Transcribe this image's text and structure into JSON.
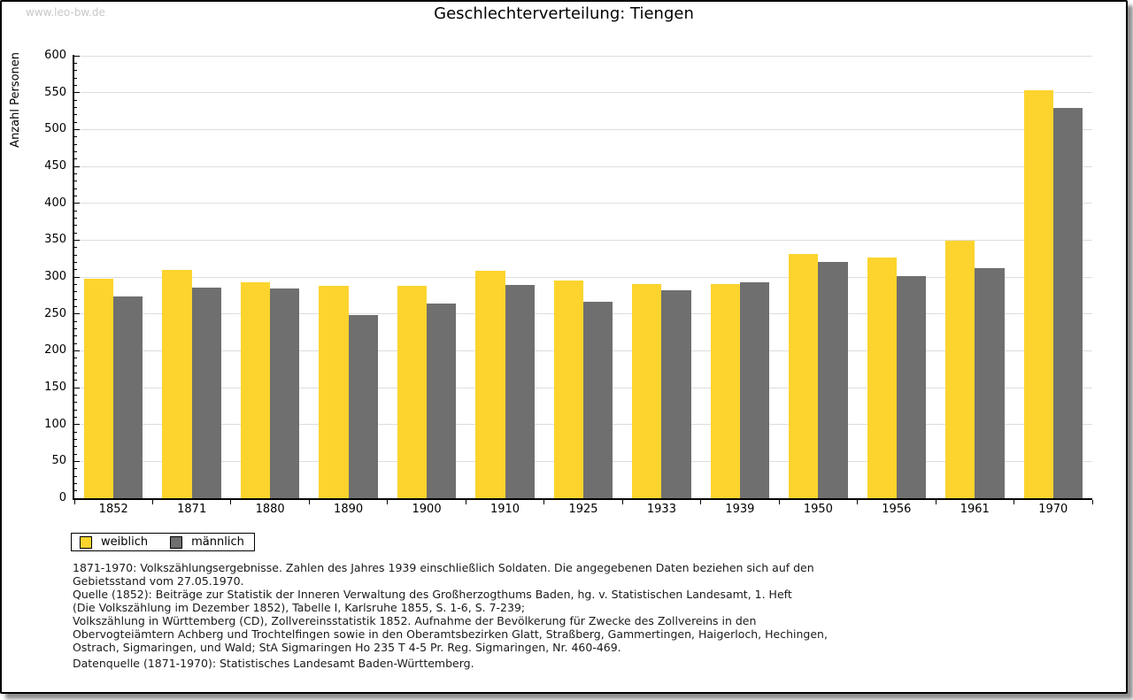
{
  "watermark": "www.leo-bw.de",
  "chart_data": {
    "type": "bar",
    "title": "Geschlechterverteilung: Tiengen",
    "ylabel": "Anzahl Personen",
    "xlabel": "",
    "categories": [
      "1852",
      "1871",
      "1880",
      "1890",
      "1900",
      "1910",
      "1925",
      "1933",
      "1939",
      "1950",
      "1956",
      "1961",
      "1970"
    ],
    "series": [
      {
        "name": "weiblich",
        "color": "#FCD42D",
        "values": [
          298,
          310,
          293,
          288,
          288,
          308,
          295,
          291,
          290,
          331,
          326,
          349,
          553
        ]
      },
      {
        "name": "männlich",
        "color": "#6F6F6F",
        "values": [
          274,
          286,
          285,
          249,
          264,
          289,
          267,
          282,
          293,
          320,
          301,
          312,
          529
        ]
      }
    ],
    "ylim": [
      0,
      600
    ],
    "ytick_step": 50,
    "yminor_step": 10,
    "grid": true,
    "legend_position": "bottom-left"
  },
  "footnote_lines": [
    "1871-1970: Volkszählungsergebnisse. Zahlen des Jahres 1939 einschließlich Soldaten. Die angegebenen Daten beziehen sich auf den",
    "Gebietsstand vom 27.05.1970.",
    "Quelle (1852): Beiträge zur Statistik der Inneren Verwaltung des Großherzogthums Baden, hg. v. Statistischen Landesamt, 1. Heft",
    "(Die Volkszählung im Dezember 1852), Tabelle I, Karlsruhe 1855, S. 1-6, S. 7-239;",
    "Volkszählung in Württemberg (CD), Zollvereinsstatistik 1852. Aufnahme der Bevölkerung für Zwecke des Zollvereins in den",
    "Obervogteiämtern Achberg und Trochtelfingen sowie in den Oberamtsbezirken Glatt, Straßberg, Gammertingen, Haigerloch, Hechingen,",
    "Ostrach, Sigmaringen, und Wald; StA Sigmaringen Ho 235 T 4-5 Pr. Reg. Sigmaringen, Nr. 460-469."
  ],
  "datasource": "Datenquelle (1871-1970): Statistisches Landesamt Baden-Württemberg.",
  "colors": {
    "bar_female": "#FCD42D",
    "bar_male": "#6F6F6F",
    "gridline": "#DDDDDD",
    "axis": "#000000",
    "watermark": "#C8C8C8",
    "card_border": "#000000"
  }
}
